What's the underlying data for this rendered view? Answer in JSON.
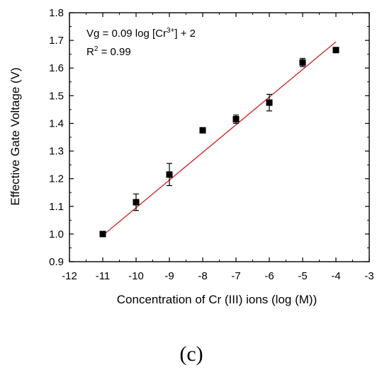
{
  "chart_data": {
    "type": "scatter",
    "xlabel": "Concentration of Cr (III) ions (log (M))",
    "ylabel": "Effective Gate Voltage (V)",
    "xlim": [
      -12,
      -3
    ],
    "ylim": [
      0.9,
      1.8
    ],
    "xticks": [
      -12,
      -11,
      -10,
      -9,
      -8,
      -7,
      -6,
      -5,
      -4,
      -3
    ],
    "yticks": [
      0.9,
      1.0,
      1.1,
      1.2,
      1.3,
      1.4,
      1.5,
      1.6,
      1.7,
      1.8
    ],
    "xtick_labels": [
      "-12",
      "-11",
      "-10",
      "-9",
      "-8",
      "-7",
      "-6",
      "-5",
      "-4",
      "-3"
    ],
    "ytick_labels": [
      "0.9",
      "1.0",
      "1.1",
      "1.2",
      "1.3",
      "1.4",
      "1.5",
      "1.6",
      "1.7",
      "1.8"
    ],
    "grid": false,
    "legend": "none",
    "points": [
      {
        "x": -11,
        "y": 1.0,
        "err": 0
      },
      {
        "x": -10,
        "y": 1.115,
        "err": 0.03
      },
      {
        "x": -9,
        "y": 1.215,
        "err": 0.04
      },
      {
        "x": -8,
        "y": 1.375,
        "err": 0
      },
      {
        "x": -7,
        "y": 1.415,
        "err": 0.015
      },
      {
        "x": -6,
        "y": 1.475,
        "err": 0.03
      },
      {
        "x": -5,
        "y": 1.62,
        "err": 0.015
      },
      {
        "x": -4,
        "y": 1.665,
        "err": 0
      }
    ],
    "fit_line": {
      "x": [
        -11,
        -4
      ],
      "y": [
        0.995,
        1.695
      ],
      "color": "#cc2222"
    },
    "annotation": {
      "equation": {
        "prefix": "Vg = 0.09 log [Cr",
        "superscript": "3+",
        "suffix": "] + 2"
      },
      "r_squared": {
        "prefix": "R",
        "superscript": "2",
        "suffix": " = 0.99"
      }
    },
    "marker_color": "#000000"
  },
  "panel_label": "(c)"
}
